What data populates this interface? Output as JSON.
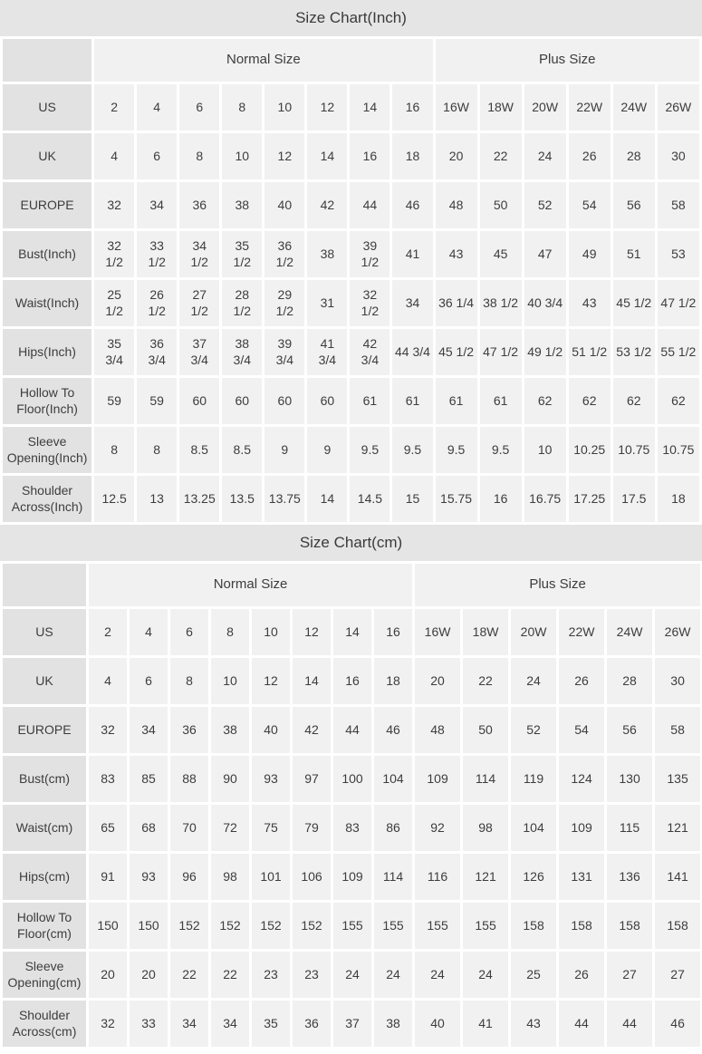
{
  "colors": {
    "title_band": "#e5e5e5",
    "label_cell": "#e2e2e2",
    "data_cell": "#f1f1f1",
    "text": "#3d3d3d"
  },
  "tables": [
    {
      "title": "Size Chart(Inch)",
      "group_headers": {
        "normal": "Normal Size",
        "plus": "Plus Size"
      },
      "normal_col_count": 8,
      "plus_col_count": 6,
      "rows": [
        {
          "label": "US",
          "values": [
            "2",
            "4",
            "6",
            "8",
            "10",
            "12",
            "14",
            "16",
            "16W",
            "18W",
            "20W",
            "22W",
            "24W",
            "26W"
          ]
        },
        {
          "label": "UK",
          "values": [
            "4",
            "6",
            "8",
            "10",
            "12",
            "14",
            "16",
            "18",
            "20",
            "22",
            "24",
            "26",
            "28",
            "30"
          ]
        },
        {
          "label": "EUROPE",
          "values": [
            "32",
            "34",
            "36",
            "38",
            "40",
            "42",
            "44",
            "46",
            "48",
            "50",
            "52",
            "54",
            "56",
            "58"
          ]
        },
        {
          "label": "Bust(Inch)",
          "values": [
            "32\n1/2",
            "33\n1/2",
            "34\n1/2",
            "35\n1/2",
            "36\n1/2",
            "38",
            "39\n1/2",
            "41",
            "43",
            "45",
            "47",
            "49",
            "51",
            "53"
          ]
        },
        {
          "label": "Waist(Inch)",
          "values": [
            "25\n1/2",
            "26\n1/2",
            "27\n1/2",
            "28\n1/2",
            "29\n1/2",
            "31",
            "32\n1/2",
            "34",
            "36 1/4",
            "38 1/2",
            "40 3/4",
            "43",
            "45 1/2",
            "47 1/2"
          ]
        },
        {
          "label": "Hips(Inch)",
          "values": [
            "35\n3/4",
            "36\n3/4",
            "37\n3/4",
            "38\n3/4",
            "39\n3/4",
            "41\n3/4",
            "42\n3/4",
            "44 3/4",
            "45 1/2",
            "47 1/2",
            "49 1/2",
            "51 1/2",
            "53 1/2",
            "55 1/2"
          ]
        },
        {
          "label": "Hollow To Floor(Inch)",
          "values": [
            "59",
            "59",
            "60",
            "60",
            "60",
            "60",
            "61",
            "61",
            "61",
            "61",
            "62",
            "62",
            "62",
            "62"
          ]
        },
        {
          "label": "Sleeve Opening(Inch)",
          "values": [
            "8",
            "8",
            "8.5",
            "8.5",
            "9",
            "9",
            "9.5",
            "9.5",
            "9.5",
            "9.5",
            "10",
            "10.25",
            "10.75",
            "10.75"
          ]
        },
        {
          "label": "Shoulder Across(Inch)",
          "values": [
            "12.5",
            "13",
            "13.25",
            "13.5",
            "13.75",
            "14",
            "14.5",
            "15",
            "15.75",
            "16",
            "16.75",
            "17.25",
            "17.5",
            "18"
          ]
        }
      ]
    },
    {
      "title": "Size Chart(cm)",
      "group_headers": {
        "normal": "Normal Size",
        "plus": "Plus Size"
      },
      "normal_col_count": 8,
      "plus_col_count": 6,
      "rows": [
        {
          "label": "US",
          "values": [
            "2",
            "4",
            "6",
            "8",
            "10",
            "12",
            "14",
            "16",
            "16W",
            "18W",
            "20W",
            "22W",
            "24W",
            "26W"
          ]
        },
        {
          "label": "UK",
          "values": [
            "4",
            "6",
            "8",
            "10",
            "12",
            "14",
            "16",
            "18",
            "20",
            "22",
            "24",
            "26",
            "28",
            "30"
          ]
        },
        {
          "label": "EUROPE",
          "values": [
            "32",
            "34",
            "36",
            "38",
            "40",
            "42",
            "44",
            "46",
            "48",
            "50",
            "52",
            "54",
            "56",
            "58"
          ]
        },
        {
          "label": "Bust(cm)",
          "values": [
            "83",
            "85",
            "88",
            "90",
            "93",
            "97",
            "100",
            "104",
            "109",
            "114",
            "119",
            "124",
            "130",
            "135"
          ]
        },
        {
          "label": "Waist(cm)",
          "values": [
            "65",
            "68",
            "70",
            "72",
            "75",
            "79",
            "83",
            "86",
            "92",
            "98",
            "104",
            "109",
            "115",
            "121"
          ]
        },
        {
          "label": "Hips(cm)",
          "values": [
            "91",
            "93",
            "96",
            "98",
            "101",
            "106",
            "109",
            "114",
            "116",
            "121",
            "126",
            "131",
            "136",
            "141"
          ]
        },
        {
          "label": "Hollow To Floor(cm)",
          "values": [
            "150",
            "150",
            "152",
            "152",
            "152",
            "152",
            "155",
            "155",
            "155",
            "155",
            "158",
            "158",
            "158",
            "158"
          ]
        },
        {
          "label": "Sleeve Opening(cm)",
          "values": [
            "20",
            "20",
            "22",
            "22",
            "23",
            "23",
            "24",
            "24",
            "24",
            "24",
            "25",
            "26",
            "27",
            "27"
          ]
        },
        {
          "label": "Shoulder Across(cm)",
          "values": [
            "32",
            "33",
            "34",
            "34",
            "35",
            "36",
            "37",
            "38",
            "40",
            "41",
            "43",
            "44",
            "44",
            "46"
          ]
        }
      ]
    }
  ]
}
